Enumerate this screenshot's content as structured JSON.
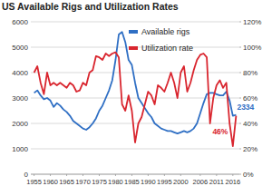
{
  "chart_data": {
    "type": "line",
    "title": "US Available Rigs and Utilization Rates",
    "x": [
      1955,
      1956,
      1957,
      1958,
      1959,
      1960,
      1961,
      1962,
      1963,
      1964,
      1965,
      1966,
      1967,
      1968,
      1969,
      1970,
      1971,
      1972,
      1973,
      1974,
      1975,
      1976,
      1977,
      1978,
      1979,
      1980,
      1981,
      1982,
      1983,
      1984,
      1985,
      1986,
      1987,
      1988,
      1989,
      1990,
      1991,
      1992,
      1993,
      1994,
      1995,
      1996,
      1997,
      1998,
      1999,
      2000,
      2001,
      2002,
      2003,
      2004,
      2005,
      2006,
      2007,
      2008,
      2009,
      2010,
      2011,
      2012,
      2013,
      2014,
      2015,
      2016,
      2017
    ],
    "xlim": [
      1954,
      2018
    ],
    "xticks": [
      1955,
      1960,
      1965,
      1970,
      1975,
      1980,
      1985,
      1990,
      1995,
      2000,
      2006,
      2011,
      2016
    ],
    "ylim": [
      0,
      6000
    ],
    "yticks": [
      0,
      1000,
      2000,
      3000,
      4000,
      5000,
      6000
    ],
    "y2lim": [
      0,
      120
    ],
    "y2ticks": [
      {
        "value": 0,
        "label": "0%"
      },
      {
        "value": 20,
        "label": "20%"
      },
      {
        "value": 40,
        "label": "40%"
      },
      {
        "value": 60,
        "label": "60%"
      },
      {
        "value": 80,
        "label": "80%"
      },
      {
        "value": 100,
        "label": "100%"
      },
      {
        "value": 120,
        "label": "120%"
      }
    ],
    "grid": true,
    "legend": "top",
    "series": [
      {
        "name": "Available rigs",
        "color": "#2f6fc4",
        "values": [
          3200,
          3300,
          3100,
          2950,
          3000,
          2900,
          2650,
          2800,
          2700,
          2550,
          2450,
          2300,
          2100,
          2000,
          1900,
          1800,
          1750,
          1850,
          2000,
          2200,
          2500,
          2700,
          3000,
          3300,
          3700,
          4500,
          5500,
          5600,
          5200,
          4500,
          4300,
          3600,
          3000,
          2800,
          2600,
          2400,
          2250,
          2000,
          1900,
          1800,
          1750,
          1700,
          1700,
          1650,
          1600,
          1650,
          1700,
          1650,
          1700,
          1800,
          2000,
          2400,
          2800,
          3150,
          3200,
          3200,
          3150,
          3100,
          3100,
          3250,
          2900,
          2300,
          2334
        ],
        "value_labels": [
          null,
          null,
          null,
          null,
          null,
          null,
          null,
          null,
          null,
          null,
          null,
          null,
          null,
          null,
          null,
          null,
          null,
          null,
          null,
          null,
          null,
          null,
          null,
          null,
          null,
          null,
          null,
          null,
          null,
          null,
          null,
          null,
          null,
          null,
          null,
          null,
          null,
          null,
          null,
          null,
          null,
          null,
          null,
          null,
          null,
          null,
          null,
          null,
          null,
          null,
          null,
          null,
          null,
          null,
          null,
          null,
          null,
          null,
          null,
          null,
          null,
          null,
          "2334"
        ]
      },
      {
        "name": "Utilization rate",
        "color": "#d9262f",
        "axis": "y2",
        "values": [
          80,
          85,
          72,
          63,
          80,
          70,
          72,
          70,
          72,
          70,
          68,
          72,
          70,
          65,
          66,
          72,
          70,
          80,
          82,
          93,
          92,
          90,
          95,
          93,
          95,
          96,
          92,
          55,
          50,
          62,
          50,
          25,
          40,
          45,
          55,
          65,
          62,
          55,
          70,
          68,
          65,
          72,
          80,
          72,
          60,
          80,
          85,
          65,
          72,
          82,
          90,
          94,
          95,
          92,
          40,
          60,
          70,
          74,
          68,
          72,
          40,
          22,
          46
        ],
        "value_labels": [
          null,
          null,
          null,
          null,
          null,
          null,
          null,
          null,
          null,
          null,
          null,
          null,
          null,
          null,
          null,
          null,
          null,
          null,
          null,
          null,
          null,
          null,
          null,
          null,
          null,
          null,
          null,
          null,
          null,
          null,
          null,
          null,
          null,
          null,
          null,
          null,
          null,
          null,
          null,
          null,
          null,
          null,
          null,
          null,
          null,
          null,
          null,
          null,
          null,
          null,
          null,
          null,
          null,
          null,
          null,
          null,
          null,
          null,
          null,
          null,
          null,
          null,
          "46%"
        ]
      }
    ]
  }
}
